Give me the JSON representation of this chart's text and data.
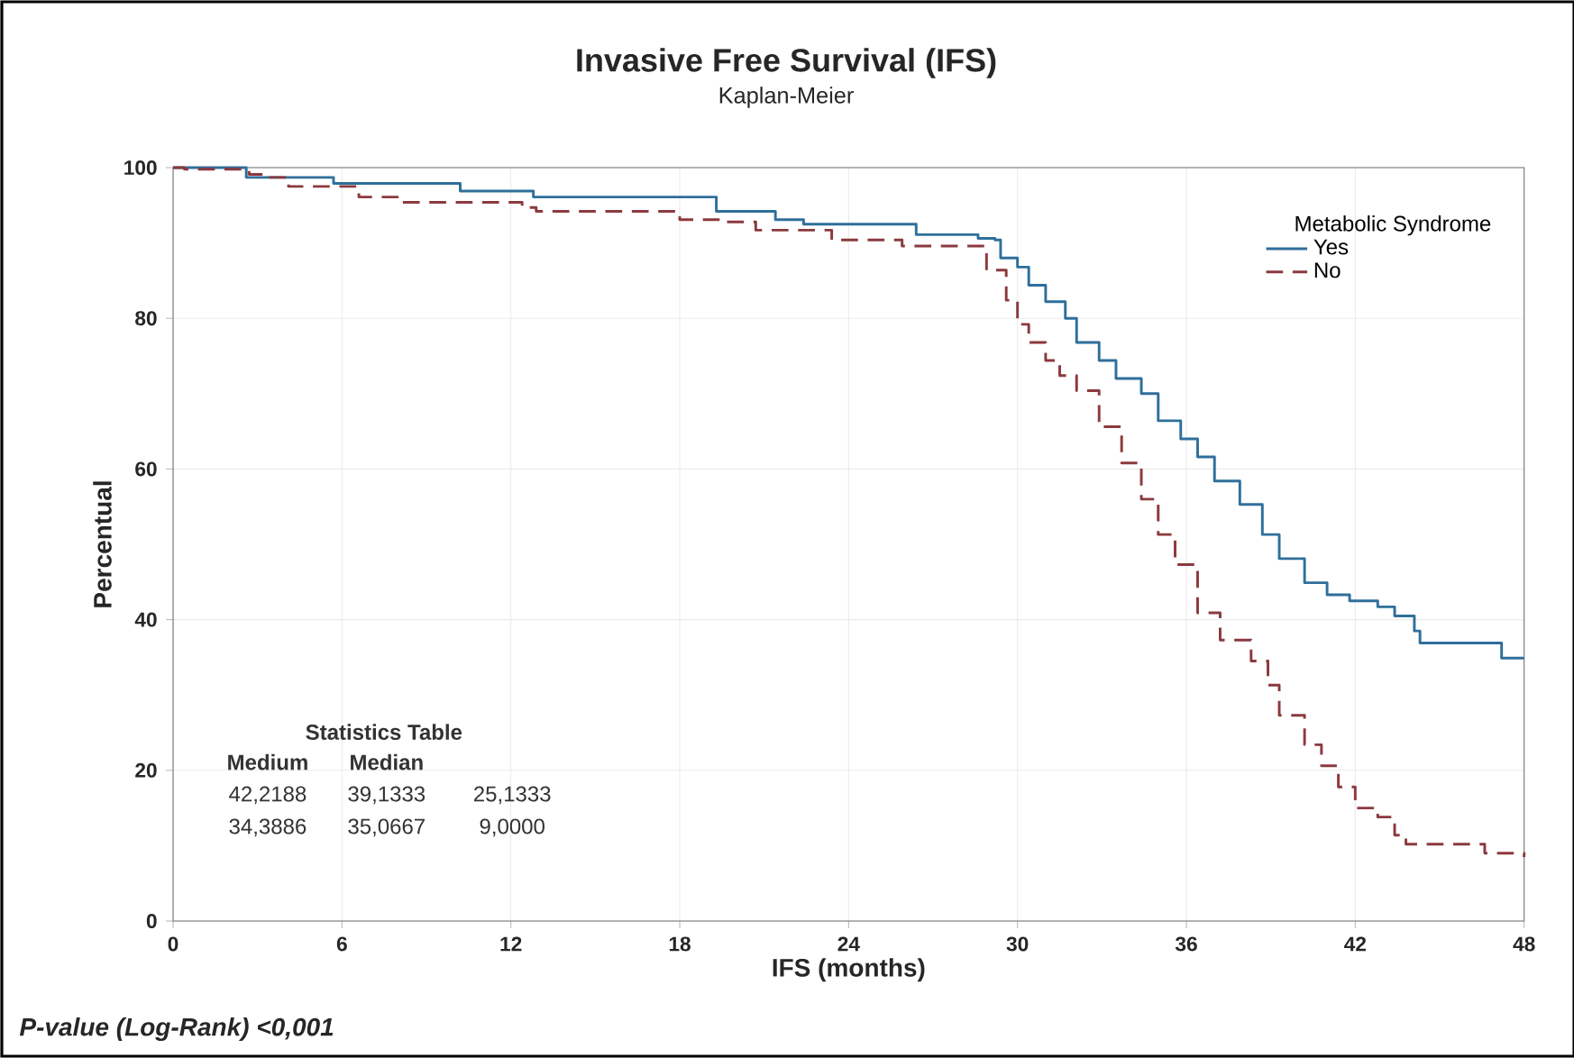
{
  "chart_data": {
    "type": "step",
    "title": "Invasive Free Survival (IFS)",
    "subtitle": "Kaplan-Meier",
    "xlabel": "IFS (months)",
    "ylabel": "Percentual",
    "legend_title": "Metabolic Syndrome",
    "legend": "top right",
    "grid": true,
    "xlim": [
      0,
      48
    ],
    "xticks": [
      0,
      6,
      12,
      18,
      24,
      30,
      36,
      42,
      48
    ],
    "ylim": [
      0,
      100
    ],
    "yticks": [
      0,
      20,
      40,
      60,
      80,
      100
    ],
    "series": [
      {
        "name": "Yes",
        "color": "#2f6f9a",
        "line_style": "solid",
        "x": [
          0,
          2.6,
          5.7,
          10.2,
          12.8,
          19.3,
          21.4,
          22.4,
          26.4,
          28.6,
          29.2,
          29.4,
          30.0,
          30.4,
          31.0,
          31.7,
          32.1,
          32.9,
          33.5,
          34.4,
          35.0,
          35.8,
          36.4,
          37.0,
          37.9,
          38.7,
          39.3,
          40.2,
          41.0,
          41.8,
          42.8,
          43.4,
          44.1,
          44.3,
          47.2,
          48
        ],
        "values": [
          100,
          98.7,
          97.9,
          96.9,
          96.1,
          94.2,
          93.1,
          92.5,
          91.1,
          90.6,
          90.4,
          88.0,
          86.8,
          84.4,
          82.2,
          80.0,
          76.8,
          74.4,
          72.0,
          70.0,
          66.4,
          64.0,
          61.6,
          58.4,
          55.3,
          51.3,
          48.1,
          44.9,
          43.3,
          42.5,
          41.7,
          40.5,
          38.5,
          36.9,
          34.9,
          34.9
        ]
      },
      {
        "name": "No",
        "color": "#8b3a3e",
        "line_style": "dashed",
        "x": [
          0,
          0.4,
          2.7,
          3.3,
          4.1,
          6.6,
          8.1,
          12.4,
          12.9,
          18.0,
          19.5,
          20.7,
          23.4,
          25.9,
          28.9,
          29.6,
          30.0,
          30.4,
          31.0,
          31.5,
          32.1,
          32.9,
          33.7,
          34.4,
          35.0,
          35.6,
          36.4,
          37.2,
          38.3,
          38.9,
          39.3,
          40.2,
          40.8,
          41.4,
          42.0,
          42.8,
          43.4,
          43.8,
          46.6,
          48
        ],
        "values": [
          100,
          99.8,
          99.1,
          98.7,
          97.5,
          96.1,
          95.4,
          94.7,
          94.2,
          93.1,
          92.8,
          91.7,
          90.4,
          89.6,
          86.4,
          82.4,
          79.2,
          76.8,
          74.4,
          72.4,
          70.4,
          65.6,
          60.8,
          56.0,
          51.3,
          47.3,
          40.9,
          37.3,
          34.5,
          31.3,
          27.3,
          23.4,
          20.6,
          17.8,
          15.0,
          13.8,
          11.4,
          10.2,
          9.0,
          8.5
        ]
      }
    ],
    "annotations": [
      "Statistics Table",
      "Medium",
      "Median",
      "42,2188",
      "39,1333",
      "25,1333",
      "34,3886",
      "35,0667",
      "9,0000",
      "P-value (Log-Rank) <0,001"
    ]
  }
}
